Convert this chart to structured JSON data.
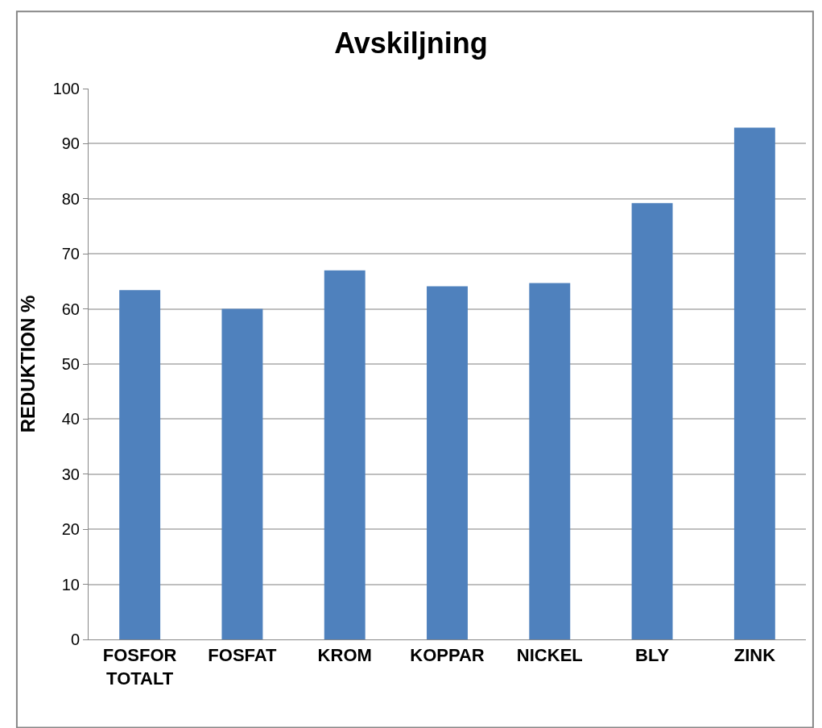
{
  "chart_data": {
    "type": "bar",
    "title": "Avskiljning",
    "ylabel": "REDUKTION %",
    "categories": [
      "FOSFOR TOTALT",
      "FOSFAT",
      "KROM",
      "KOPPAR",
      "NICKEL",
      "BLY",
      "ZINK"
    ],
    "values": [
      63.4,
      60.0,
      67.0,
      64.1,
      64.7,
      79.2,
      92.9
    ],
    "color": "#4f81bd",
    "ylim": [
      0,
      100
    ],
    "yticks": [
      0,
      10,
      20,
      30,
      40,
      50,
      60,
      70,
      80,
      90,
      100
    ],
    "grid": "y"
  }
}
